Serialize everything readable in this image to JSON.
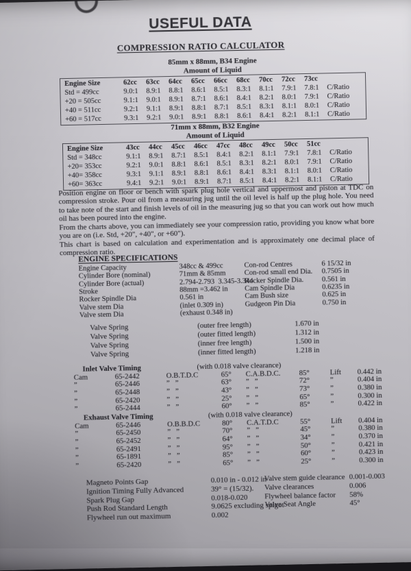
{
  "title": "USEFUL DATA",
  "subtitle": "COMPRESSION RATIO CALCULATOR",
  "tables": [
    {
      "engine_title": "85mm x 88mm, B34 Engine",
      "amount_label": "Amount of Liquid",
      "header": [
        "Engine Size",
        "62cc",
        "63cc",
        "64cc",
        "65cc",
        "66cc",
        "68cc",
        "70cc",
        "72cc",
        "73cc",
        ""
      ],
      "rows": [
        [
          "Std = 499cc",
          "9.0:1",
          "8.9:1",
          "8.8:1",
          "8.6:1",
          "8.5:1",
          "8.3:1",
          "8.1:1",
          "7.9:1",
          "7.8:1",
          "C/Ratio"
        ],
        [
          "+20 = 505cc",
          "9.1:1",
          "9.0:1",
          "8.9:1",
          "8.7:1",
          "8.6:1",
          "8.4:1",
          "8.2:1",
          "8.0:1",
          "7.9:1",
          "C/Ratio"
        ],
        [
          "+40 = 511cc",
          "9.2:1",
          "9.1:1",
          "8.9:1",
          "8.8:1",
          "8.7:1",
          "8.5:1",
          "8.3:1",
          "8.1:1",
          "8.0:1",
          "C/Ratio"
        ],
        [
          "+60 = 517cc",
          "9.3:1",
          "9.2:1",
          "9.0:1",
          "8.9:1",
          "8.8:1",
          "8.6:1",
          "8.4:1",
          "8.2:1",
          "8.1:1",
          "C/Ratio"
        ]
      ]
    },
    {
      "engine_title": "71mm x 88mm, B32 Engine",
      "amount_label": "Amount of Liquid",
      "header": [
        "Engine Size",
        "43cc",
        "44cc",
        "45cc",
        "46cc",
        "47cc",
        "48cc",
        "49cc",
        "50cc",
        "51cc",
        ""
      ],
      "rows": [
        [
          "Std = 348cc",
          "9.1:1",
          "8.9:1",
          "8.7:1",
          "8.5:1",
          "8.4:1",
          "8.2:1",
          "8.1:1",
          "7.9:1",
          "7.8:1",
          "C/Ratio"
        ],
        [
          "+20= 353cc",
          "9.2:1",
          "9.0:1",
          "8.8:1",
          "8.6:1",
          "8.5:1",
          "8.3:1",
          "8.2:1",
          "8.0:1",
          "7.9:1",
          "C/Ratio"
        ],
        [
          "+40= 358cc",
          "9.3:1",
          "9.1:1",
          "8.9:1",
          "8.8:1",
          "8.6:1",
          "8.4:1",
          "8.3:1",
          "8.1:1",
          "8.0:1",
          "C/Ratio"
        ],
        [
          "+60= 363cc",
          "9.4:1",
          "9.2:1",
          "9.0:1",
          "8.9:1",
          "8.7:1",
          "8.5:1",
          "8.4:1",
          "8.2:1",
          "8.1:1",
          "C/Ratio"
        ]
      ]
    }
  ],
  "instructions": [
    "Position engine on floor or bench with spark plug hole vertical and uppermost and piston at TDC on compression stroke. Pour oil from a measuring jug until the oil level is half up the plug hole. You need to take note of the start and finish levels of oil in the measuring jug so that you can work out how much oil has been poured into the engine.",
    "From the charts above, you can immediately see your compression ratio, providing you know what bore you are on  (i.e. Std, +20\", +40\", or +60\").",
    "This chart is based on calculation and experimentation and is approximately one decimal place of compression ratio."
  ],
  "specs": {
    "heading": "ENGINE SPECIFICATIONS",
    "left": [
      {
        "label": "Engine Capacity",
        "value": "348cc & 499cc"
      },
      {
        "label": "Cylinder Bore (nominal)",
        "value": "71mm & 85mm"
      },
      {
        "label": "Cylinder Bore (actual)",
        "value": "2.794-2.793  3.345-3.344"
      },
      {
        "label": "Stroke",
        "value": "88mm =3.462 in"
      },
      {
        "label": "Rocker Spindle Dia",
        "value": "0.561 in"
      },
      {
        "label": "Valve stem Dia",
        "value": "(inlet 0.309 in)"
      },
      {
        "label": "Valve stem Dia",
        "value": "(exhaust 0.348 in)"
      }
    ],
    "right": [
      {
        "label": "Con-rod Centres",
        "value": "6 15/32 in"
      },
      {
        "label": "Con-rod small end Dia.",
        "value": "0.7505 in"
      },
      {
        "label": "Rocker Spindle Dia.",
        "value": "0.561 in"
      },
      {
        "label": "Cam Spindle Dia",
        "value": "0.6235 in"
      },
      {
        "label": "Cam Bush size",
        "value": "0.625 in"
      },
      {
        "label": "Gudgeon Pin Dia",
        "value": "0.750 in"
      }
    ]
  },
  "valve_springs": [
    {
      "label": "Valve Spring",
      "detail": "(outer free length)",
      "value": "1.670 in"
    },
    {
      "label": "Valve Spring",
      "detail": "(outer fitted length)",
      "value": "1.312 in"
    },
    {
      "label": "Valve Spring",
      "detail": "(inner free length)",
      "value": "1.500 in"
    },
    {
      "label": "Valve Spring",
      "detail": "(inner fitted length)",
      "value": "1.218 in"
    }
  ],
  "inlet_timing": {
    "heading": "Inlet Valve Timing",
    "note": "(with 0.018 valve clearance)",
    "rows": [
      [
        "Cam",
        "65-2442",
        "O.B.T.D.C",
        "65°",
        "C.A.B.D.C.",
        "85°",
        "Lift",
        "0.442 in"
      ],
      [
        "”",
        "65-2446",
        "”   ”",
        "63°",
        "”   ”",
        "72°",
        "”",
        "0.404 in"
      ],
      [
        "”",
        "65-2448",
        "”   ”",
        "43°",
        "”   ”",
        "73°",
        "”",
        "0.380 in"
      ],
      [
        "”",
        "65-2420",
        "”   ”",
        "25°",
        "”   ”",
        "65°",
        "”",
        "0.300 in"
      ],
      [
        "”",
        "65-2444",
        "”   ”",
        "60°",
        "”   ”",
        "85°",
        "”",
        "0.422 in"
      ]
    ]
  },
  "exhaust_timing": {
    "heading": "Exhaust Valve Timing",
    "note": "(with 0.018 valve clearance)",
    "rows": [
      [
        "Cam",
        "65-2446",
        "O.B.B.D.C",
        "80°",
        "C.A.T.D.C",
        "55°",
        "Lift",
        "0.404 in"
      ],
      [
        "”",
        "65-2450",
        "”   ”",
        "70°",
        "”   ”",
        "45°",
        "”",
        "0.380 in"
      ],
      [
        "”",
        "65-2452",
        "”   ”",
        "64°",
        "”   ”",
        "34°",
        "”",
        "0.370 in"
      ],
      [
        "”",
        "65-2491",
        "”   ”",
        "95°",
        "”   ”",
        "50°",
        "”",
        "0.421 in"
      ],
      [
        "”",
        "65-1891",
        "”   ”",
        "85°",
        "”   ”",
        "60°",
        "”",
        "0.423 in"
      ],
      [
        "”",
        "65-2420",
        "”   ”",
        "65°",
        "”   ”",
        "25°",
        "”",
        "0.300 in"
      ]
    ]
  },
  "bottom": {
    "left": [
      {
        "label": "Magneto Points Gap",
        "value": "0.010 in - 0.012 in"
      },
      {
        "label": "Ignition Timing Fully Advanced",
        "value": "39° = (15/32)."
      },
      {
        "label": "Spark Plug Gap",
        "value": "0.018-0.020"
      },
      {
        "label": "Push Rod Standard Length",
        "value": "9.0625 excluding spigot"
      },
      {
        "label": "Flywheel run out maximum",
        "value": "0.002"
      }
    ],
    "right": [
      {
        "label": "Valve stem guide clearance",
        "value": "0.001-0.003"
      },
      {
        "label": "Valve clearances",
        "value": "0.006"
      },
      {
        "label": "Flywheel balance factor",
        "value": "58%"
      },
      {
        "label": "Valve Seat Angle",
        "value": "45°"
      }
    ]
  },
  "colors": {
    "paper": "#c6c4ca",
    "ink": "#2b2a30",
    "background": "#17161a"
  }
}
